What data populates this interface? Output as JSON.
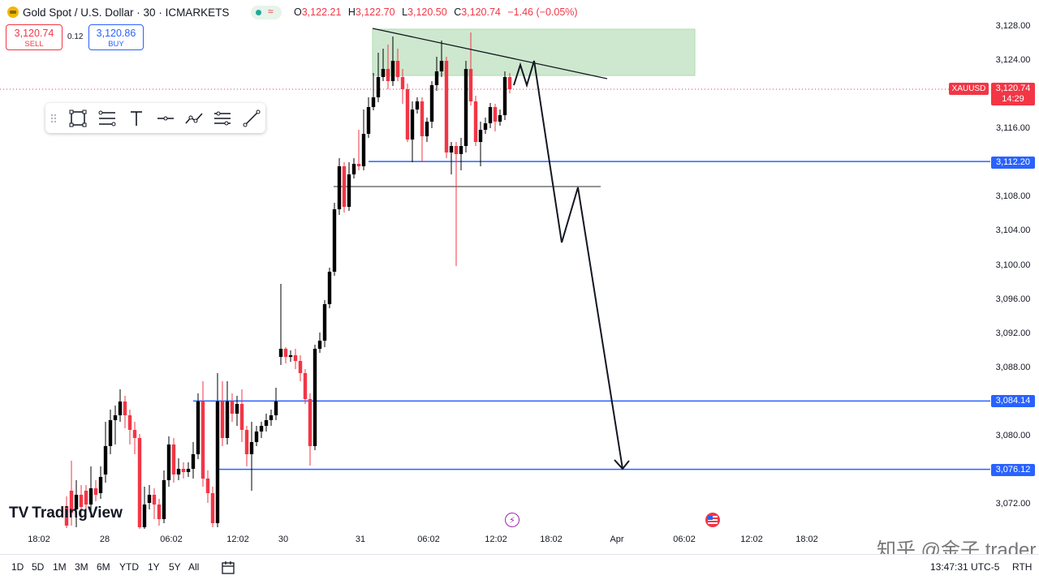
{
  "header": {
    "title": "Gold Spot / U.S. Dollar · 30 · ICMARKETS",
    "ohlc": {
      "o_label": "O",
      "o": "3,122.21",
      "h_label": "H",
      "h": "3,122.70",
      "l_label": "L",
      "l": "3,120.50",
      "c_label": "C",
      "c": "3,120.74",
      "change": "−1.46 (−0.05%)"
    },
    "status_waves": "≈"
  },
  "trade": {
    "sell_price": "3,120.74",
    "sell_label": "SELL",
    "spread": "0.12",
    "buy_price": "3,120.86",
    "buy_label": "BUY"
  },
  "price_axis": [
    "3,128.00",
    "3,124.00",
    "3,116.00",
    "3,108.00",
    "3,104.00",
    "3,100.00",
    "3,096.00",
    "3,092.00",
    "3,088.00",
    "3,080.00",
    "3,072.00"
  ],
  "price_values": [
    3128,
    3124,
    3116,
    3108,
    3104,
    3100,
    3096,
    3092,
    3088,
    3080,
    3072
  ],
  "hlines": [
    {
      "price": "3,112.20",
      "value": 3112.2
    },
    {
      "price": "3,084.14",
      "value": 3084.14
    },
    {
      "price": "3,076.12",
      "value": 3076.12
    }
  ],
  "current": {
    "symbol": "XAUUSD",
    "price": "3,120.74",
    "countdown": "14:29",
    "value": 3120.74
  },
  "time_axis": [
    "18:02",
    "28",
    "06:02",
    "12:02",
    "30",
    "31",
    "06:02",
    "12:02",
    "18:02",
    "Apr",
    "06:02",
    "12:02",
    "18:02"
  ],
  "ranges": [
    "1D",
    "5D",
    "1M",
    "3M",
    "6M",
    "YTD",
    "1Y",
    "5Y",
    "All"
  ],
  "clock": "13:47:31 UTC-5",
  "session": "RTH",
  "logo": "TradingView",
  "watermark": "知乎 @金子 trader",
  "colors": {
    "up": "#000000",
    "down": "#f23645",
    "hline": "#2962ff",
    "zone": "#c8e6c9"
  },
  "toolbar_icons": [
    "drag-handle-icon",
    "rectangle-icon",
    "fib-retracement-icon",
    "text-icon",
    "horizontal-line-icon",
    "path-icon",
    "parallel-channel-icon",
    "trend-line-icon"
  ]
}
